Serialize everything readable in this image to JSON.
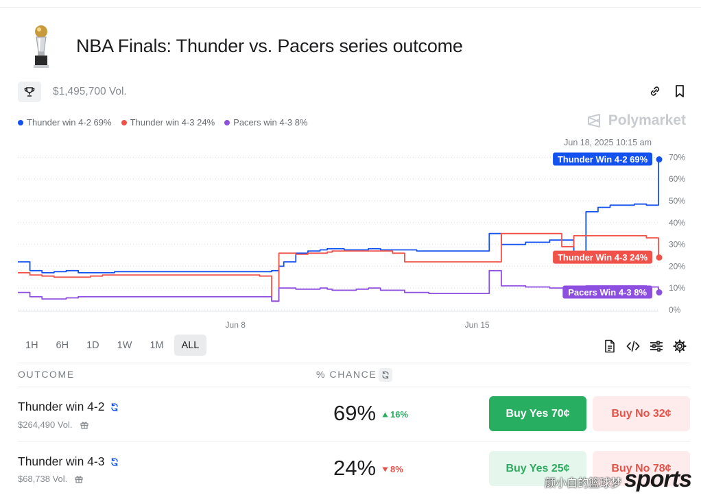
{
  "header": {
    "title": "NBA Finals: Thunder vs. Pacers series outcome",
    "volume": "$1,495,700 Vol."
  },
  "brand": {
    "name": "Polymarket"
  },
  "legend": [
    {
      "label": "Thunder win 4-2 69%",
      "color": "#1452f0"
    },
    {
      "label": "Thunder win 4-3 24%",
      "color": "#f0524a"
    },
    {
      "label": "Pacers win 4-3 8%",
      "color": "#8d4fe0"
    }
  ],
  "chart_data": {
    "type": "line",
    "timestamp": "Jun 18, 2025 10:15 am",
    "x_ticks": [
      "Jun 8",
      "Jun 15"
    ],
    "y_ticks": [
      "70%",
      "60%",
      "50%",
      "40%",
      "30%",
      "20%",
      "10%",
      "0%"
    ],
    "ylim": [
      0,
      72
    ],
    "grid": true,
    "legend_position": "top-left",
    "series": [
      {
        "name": "Thunder Win 4-2",
        "end_label": "Thunder Win 4-2 69%",
        "color": "#1452f0",
        "x": [
          0,
          0.5,
          1,
          1.5,
          2,
          2.5,
          3,
          3.5,
          4,
          4.5,
          5,
          5.5,
          6,
          6.5,
          7,
          7.5,
          8,
          8.5,
          9,
          9.5,
          10,
          10.5,
          10.8,
          11,
          11.5,
          12,
          12.5,
          12.8,
          13,
          13.5,
          14,
          14.2,
          14.5,
          15,
          15.5,
          16,
          16.5,
          17,
          17.5,
          18,
          18.5,
          19,
          19.5,
          20,
          20.5,
          21,
          21.5,
          22,
          22.5,
          23,
          23.5,
          24,
          24.5,
          25,
          25.5,
          26,
          26.5
        ],
        "values": [
          22,
          18,
          17,
          17.5,
          18,
          17,
          17,
          17,
          17.5,
          17.5,
          17.5,
          17.5,
          17.5,
          17.5,
          17.5,
          17.5,
          17.5,
          17.5,
          17.5,
          17.5,
          17.5,
          18,
          20,
          22,
          26,
          27,
          27.5,
          28,
          28,
          27.5,
          27.5,
          27.5,
          28,
          27.5,
          27.5,
          27.5,
          27,
          27,
          27,
          27,
          27,
          27,
          35,
          30,
          30,
          31,
          31,
          32,
          32,
          23,
          45,
          47,
          48,
          48,
          48.5,
          48,
          69
        ]
      },
      {
        "name": "Thunder Win 4-3",
        "end_label": "Thunder Win 4-3 24%",
        "color": "#f0524a",
        "x": [
          0,
          0.5,
          1,
          1.5,
          2,
          2.5,
          3,
          3.5,
          4,
          4.5,
          5,
          5.5,
          6,
          6.5,
          7,
          7.5,
          8,
          8.5,
          9,
          9.5,
          10,
          10.5,
          10.8,
          11,
          11.5,
          12,
          12.5,
          12.8,
          13,
          13.5,
          14,
          14.2,
          14.5,
          15,
          15.5,
          16,
          16.5,
          17,
          17.5,
          18,
          18.5,
          19,
          19.5,
          20,
          20.5,
          21,
          21.5,
          22,
          22.5,
          23,
          23.5,
          24,
          24.5,
          25,
          25.5,
          26,
          26.5
        ],
        "values": [
          17,
          16,
          15.5,
          15,
          15,
          15,
          15.5,
          16,
          16,
          16,
          16,
          16,
          16,
          16,
          16,
          16,
          16,
          16,
          16,
          16,
          15.5,
          4,
          26,
          26,
          25.5,
          26,
          26,
          26.5,
          27,
          27,
          27,
          27,
          27,
          27,
          26,
          22,
          22,
          22,
          22,
          22,
          22,
          22,
          22,
          35,
          35,
          35,
          35,
          35,
          29,
          34,
          34,
          34,
          34,
          34,
          34,
          33,
          24
        ]
      },
      {
        "name": "Pacers Win 4-3",
        "end_label": "Pacers Win 4-3 8%",
        "color": "#8d4fe0",
        "x": [
          0,
          0.5,
          1,
          1.5,
          2,
          2.5,
          3,
          3.5,
          4,
          4.5,
          5,
          5.5,
          6,
          6.5,
          7,
          7.5,
          8,
          8.5,
          9,
          9.5,
          10,
          10.5,
          10.8,
          11,
          11.5,
          12,
          12.5,
          12.8,
          13,
          13.5,
          14,
          14.2,
          14.5,
          15,
          15.5,
          16,
          16.5,
          17,
          17.5,
          18,
          18.5,
          19,
          19.5,
          20,
          20.5,
          21,
          21.5,
          22,
          22.5,
          23,
          23.5,
          24,
          24.5,
          25,
          25.5,
          26,
          26.5
        ],
        "values": [
          8,
          6,
          5,
          5,
          5.5,
          6,
          6,
          6,
          6,
          6,
          6,
          6,
          6,
          6,
          6,
          6,
          6,
          6,
          6,
          6,
          6,
          4,
          10,
          10,
          9.5,
          9.5,
          10,
          9.5,
          9,
          9,
          9.5,
          9.5,
          10,
          9,
          9,
          8,
          8,
          7.5,
          7.5,
          7.5,
          7.5,
          7.5,
          18,
          11,
          11,
          10.5,
          10.5,
          10,
          10,
          10.5,
          11,
          11,
          11,
          11,
          11,
          10.5,
          8
        ]
      }
    ]
  },
  "ranges": [
    "1H",
    "6H",
    "1D",
    "1W",
    "1M",
    "ALL"
  ],
  "active_range": "ALL",
  "table": {
    "outcome_header": "OUTCOME",
    "chance_header": "% CHANCE",
    "rows": [
      {
        "name": "Thunder win 4-2",
        "volume": "$264,490 Vol.",
        "chance": "69%",
        "change": "16%",
        "direction": "up",
        "buy_yes": "Buy Yes 70¢",
        "buy_no": "Buy No 32¢"
      },
      {
        "name": "Thunder win 4-3",
        "volume": "$68,738 Vol.",
        "chance": "24%",
        "change": "8%",
        "direction": "down",
        "buy_yes": "Buy Yes 25¢",
        "buy_no": "Buy No 78¢"
      }
    ]
  },
  "watermark": {
    "cn": "颜小白的篮球梦",
    "en": "sports"
  }
}
